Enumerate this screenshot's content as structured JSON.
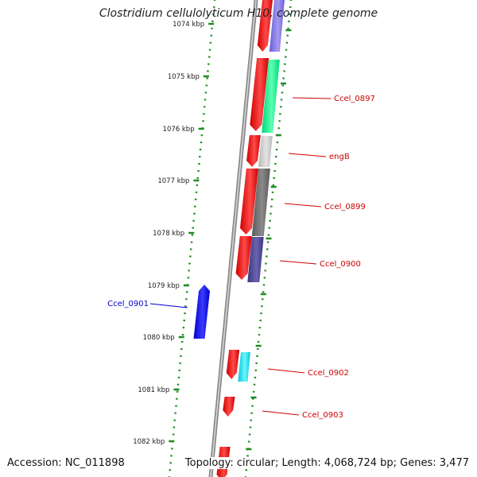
{
  "title": "Clostridium cellulolyticum H10, complete genome",
  "accession": "Accession: NC_011898",
  "topology": "Topology: circular; Length: 4,068,724 bp; Genes: 3,477",
  "colors": {
    "backbone": "#7a7a7a",
    "ticks": "#1f8a1f",
    "forward_gene": "#ff0000",
    "reverse_gene": "#0000ff",
    "forward_label": "#cc0000",
    "reverse_label": "#0000cc"
  },
  "kbp_ticks": [
    "1074 kbp",
    "1075 kbp",
    "1076 kbp",
    "1077 kbp",
    "1078 kbp",
    "1079 kbp",
    "1080 kbp",
    "1081 kbp",
    "1082 kbp"
  ],
  "gene_labels": [
    {
      "id": "ccel-0897",
      "text": "Ccel_0897",
      "strand": "forward"
    },
    {
      "id": "engb",
      "text": "engB",
      "strand": "forward"
    },
    {
      "id": "ccel-0899",
      "text": "Ccel_0899",
      "strand": "forward"
    },
    {
      "id": "ccel-0900",
      "text": "Ccel_0900",
      "strand": "forward"
    },
    {
      "id": "ccel-0901",
      "text": "Ccel_0901",
      "strand": "reverse"
    },
    {
      "id": "ccel-0902",
      "text": "Ccel_0902",
      "strand": "forward"
    },
    {
      "id": "ccel-0903",
      "text": "Ccel_0903",
      "strand": "forward"
    }
  ]
}
